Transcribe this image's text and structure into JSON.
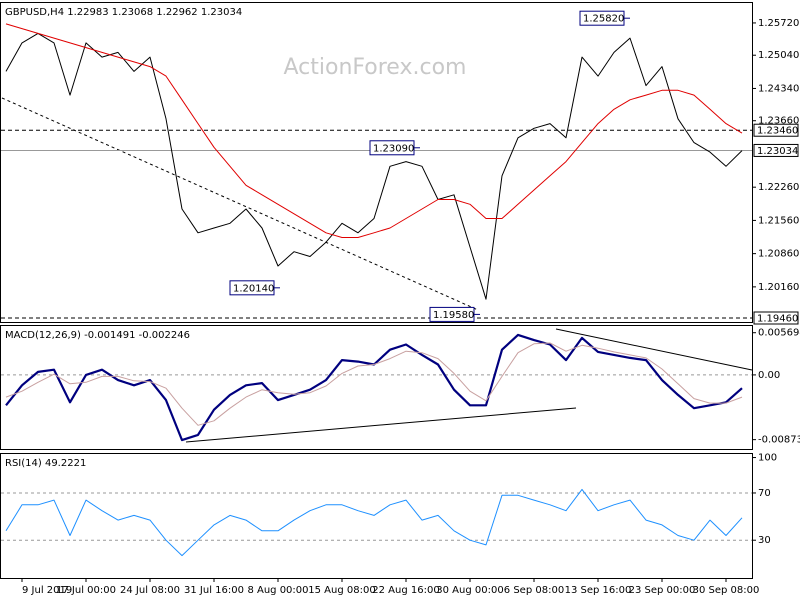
{
  "chart_data": [
    {
      "type": "line",
      "title": "GBPUSD,H4  1.22983 1.23068 1.22962 1.23034",
      "watermark": "ActionForex.com",
      "series": [
        {
          "color": "#000000",
          "values": [
            1.247,
            1.253,
            1.255,
            1.253,
            1.242,
            1.253,
            1.25,
            1.251,
            1.247,
            1.25,
            1.237,
            1.218,
            1.213,
            1.214,
            1.215,
            1.218,
            1.214,
            1.206,
            1.209,
            1.208,
            1.211,
            1.215,
            1.213,
            1.216,
            1.227,
            1.228,
            1.227,
            1.22,
            1.221,
            1.21,
            1.199,
            1.225,
            1.233,
            1.235,
            1.236,
            1.233,
            1.25,
            1.246,
            1.251,
            1.254,
            1.244,
            1.248,
            1.237,
            1.232,
            1.23,
            1.227,
            1.2303
          ]
        },
        {
          "color": "#e00000",
          "values": [
            1.257,
            1.256,
            1.255,
            1.254,
            1.253,
            1.252,
            1.251,
            1.25,
            1.249,
            1.248,
            1.246,
            1.241,
            1.236,
            1.231,
            1.227,
            1.223,
            1.221,
            1.219,
            1.217,
            1.215,
            1.213,
            1.212,
            1.212,
            1.213,
            1.214,
            1.216,
            1.218,
            1.22,
            1.22,
            1.219,
            1.216,
            1.216,
            1.219,
            1.222,
            1.225,
            1.228,
            1.232,
            1.236,
            1.239,
            1.241,
            1.242,
            1.243,
            1.243,
            1.242,
            1.239,
            1.236,
            1.234
          ]
        }
      ],
      "ylim": [
        1.1942,
        1.2614
      ],
      "yticks": [
        {
          "value": 1.2572,
          "label": "1.25720"
        },
        {
          "value": 1.2504,
          "label": "1.25040"
        },
        {
          "value": 1.2434,
          "label": "1.24340"
        },
        {
          "value": 1.2366,
          "label": "1.23660"
        },
        {
          "value": 1.2226,
          "label": "1.22260"
        },
        {
          "value": 1.2156,
          "label": "1.21560"
        },
        {
          "value": 1.2086,
          "label": "1.20860"
        },
        {
          "value": 1.2016,
          "label": "1.20160"
        }
      ],
      "hlines": [
        {
          "value": 1.2346,
          "label": "1.23460",
          "style": "dashed"
        },
        {
          "value": 1.23034,
          "label": "1.23034",
          "style": "solid"
        },
        {
          "value": 1.1946,
          "label": "1.19460",
          "style": "dashed"
        }
      ],
      "annotations": [
        {
          "value": 1.2582,
          "label": "1.25820"
        },
        {
          "value": 1.2309,
          "label": "1.23090"
        },
        {
          "value": 1.2014,
          "label": "1.20140"
        },
        {
          "value": 1.1958,
          "label": "1.19580"
        }
      ],
      "grid": false
    },
    {
      "type": "line",
      "title": "MACD(12,26,9) -0.001491 -0.002246",
      "series": [
        {
          "color": "#00007f",
          "width": 2.2,
          "values": [
            -0.0041,
            -0.0014,
            0.0004,
            0.0007,
            -0.0037,
            0,
            0.0007,
            -0.0007,
            -0.0014,
            -0.0007,
            -0.0034,
            -0.0088,
            -0.0081,
            -0.0047,
            -0.0027,
            -0.0014,
            -0.0011,
            -0.0034,
            -0.0027,
            -0.002,
            -0.0007,
            0.002,
            0.0018,
            0.0014,
            0.0034,
            0.0041,
            0.0027,
            0.0014,
            -0.002,
            -0.0041,
            -0.0041,
            0.0034,
            0.0054,
            0.0047,
            0.0041,
            0.002,
            0.005,
            0.0031,
            0.0027,
            0.0023,
            0.002,
            -0.0007,
            -0.0027,
            -0.0045,
            -0.0041,
            -0.0037,
            -0.0018
          ]
        },
        {
          "color": "#c8a0a0",
          "width": 1,
          "values": [
            -0.003,
            -0.0022,
            -0.001,
            0.0001,
            -0.0012,
            -0.001,
            -0.0002,
            -0.0002,
            -0.0008,
            -0.0009,
            -0.0018,
            -0.0045,
            -0.0068,
            -0.0062,
            -0.0045,
            -0.003,
            -0.002,
            -0.0024,
            -0.0026,
            -0.0024,
            -0.0015,
            0.0002,
            0.0012,
            0.0014,
            0.0022,
            0.0032,
            0.003,
            0.0022,
            0.0002,
            -0.0022,
            -0.0035,
            -0.0002,
            0.003,
            0.0042,
            0.0043,
            0.0032,
            0.004,
            0.0036,
            0.0031,
            0.0027,
            0.0023,
            0.0008,
            -0.0012,
            -0.0032,
            -0.0038,
            -0.0038,
            -0.003
          ]
        }
      ],
      "ylim": [
        -0.01,
        0.0066
      ],
      "yticks": [
        0.005694,
        {
          "value": 0,
          "label": "0.00"
        },
        -0.008737
      ],
      "grid": true
    },
    {
      "type": "line",
      "title": "RSI(14) 49.2221",
      "categories": [
        null,
        "9 Jul 2019",
        null,
        null,
        null,
        "17 Jul 00:00",
        null,
        null,
        null,
        "24 Jul 08:00",
        null,
        null,
        null,
        "31 Jul 16:00",
        null,
        null,
        null,
        "8 Aug 00:00",
        null,
        null,
        null,
        "15 Aug 08:00",
        null,
        null,
        null,
        "22 Aug 16:00",
        null,
        null,
        null,
        "30 Aug 00:00",
        null,
        null,
        null,
        "6 Sep 08:00",
        null,
        null,
        null,
        "13 Sep 16:00",
        null,
        null,
        null,
        "23 Sep 00:00",
        null,
        null,
        null,
        "30 Sep 08:00",
        null
      ],
      "series": [
        {
          "color": "#1e90ff",
          "width": 1,
          "values": [
            38,
            60,
            60,
            64,
            34,
            64,
            55,
            47,
            51,
            47,
            30,
            17,
            30,
            43,
            51,
            47,
            38,
            38,
            47,
            55,
            60,
            60,
            55,
            51,
            60,
            64,
            47,
            51,
            38,
            30,
            26,
            68,
            68,
            64,
            60,
            55,
            73,
            55,
            60,
            64,
            47,
            43,
            34,
            30,
            47,
            34,
            49
          ]
        }
      ],
      "ylim": [
        -2,
        103
      ],
      "yticks": [
        100,
        70,
        30
      ],
      "grid": true
    }
  ]
}
